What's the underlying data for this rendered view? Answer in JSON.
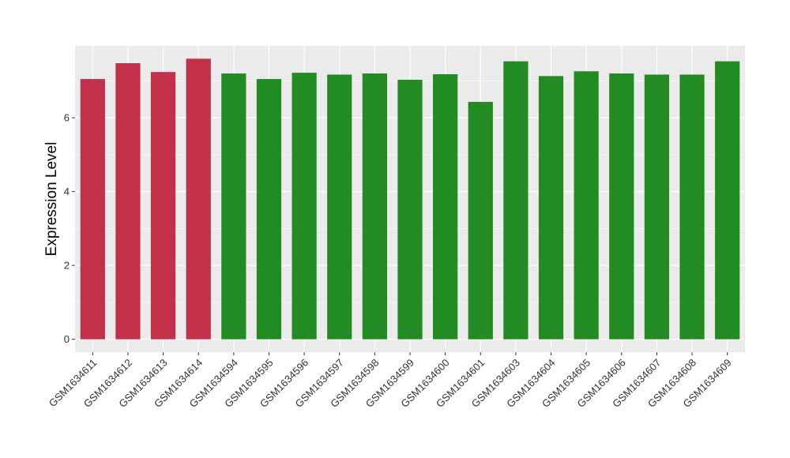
{
  "chart_data": {
    "type": "bar",
    "title": "",
    "xlabel": "",
    "ylabel": "Expression Level",
    "ylim": [
      -0.35,
      7.95
    ],
    "yticks": [
      0,
      2,
      4,
      6
    ],
    "grid": true,
    "legend": "none",
    "colors": {
      "panel": "#EBEBEB",
      "grid": "#FFFFFF",
      "red": "#C3304A",
      "green": "#228B22"
    },
    "categories": [
      "GSM1634611",
      "GSM1634612",
      "GSM1634613",
      "GSM1634614",
      "GSM1634594",
      "GSM1634595",
      "GSM1634596",
      "GSM1634597",
      "GSM1634598",
      "GSM1634599",
      "GSM1634600",
      "GSM1634601",
      "GSM1634603",
      "GSM1634604",
      "GSM1634605",
      "GSM1634606",
      "GSM1634607",
      "GSM1634608",
      "GSM1634609"
    ],
    "values": [
      7.05,
      7.48,
      7.24,
      7.6,
      7.2,
      7.05,
      7.22,
      7.17,
      7.2,
      7.03,
      7.18,
      6.43,
      7.53,
      7.13,
      7.26,
      7.2,
      7.17,
      7.17,
      7.53
    ],
    "bar_colors": [
      "red",
      "red",
      "red",
      "red",
      "green",
      "green",
      "green",
      "green",
      "green",
      "green",
      "green",
      "green",
      "green",
      "green",
      "green",
      "green",
      "green",
      "green",
      "green"
    ]
  }
}
